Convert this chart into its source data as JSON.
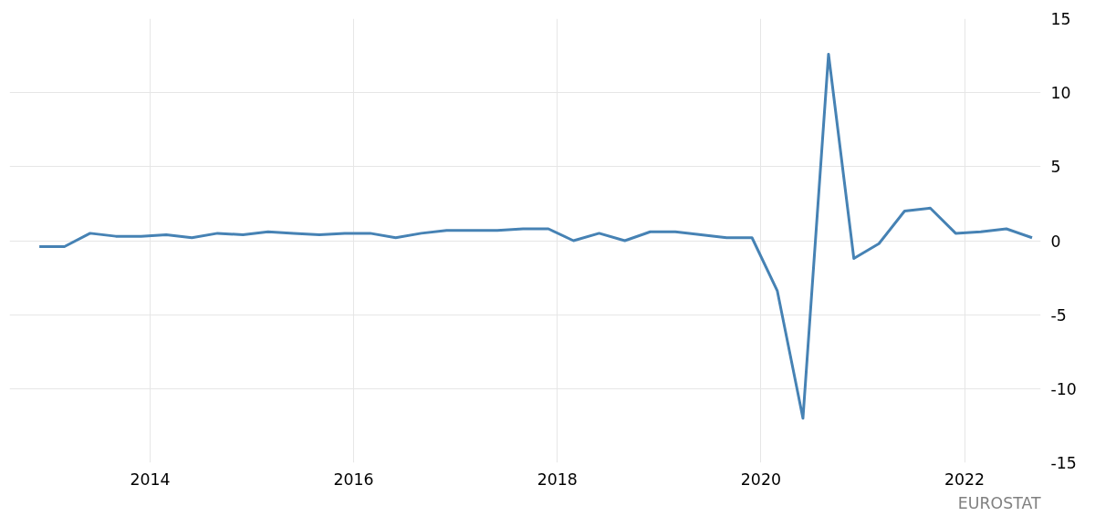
{
  "chart_data": {
    "type": "line",
    "x": [
      "2012-11-30",
      "2013-02-28",
      "2013-05-31",
      "2013-08-31",
      "2013-11-30",
      "2014-02-28",
      "2014-05-31",
      "2014-08-31",
      "2014-11-30",
      "2015-02-28",
      "2015-05-31",
      "2015-08-31",
      "2015-11-30",
      "2016-02-29",
      "2016-05-31",
      "2016-08-31",
      "2016-11-30",
      "2017-02-28",
      "2017-05-31",
      "2017-08-31",
      "2017-11-30",
      "2018-02-28",
      "2018-05-31",
      "2018-08-31",
      "2018-11-30",
      "2019-02-28",
      "2019-05-31",
      "2019-08-31",
      "2019-11-30",
      "2020-02-29",
      "2020-05-31",
      "2020-08-31",
      "2020-11-30",
      "2021-02-28",
      "2021-05-31",
      "2021-08-31",
      "2021-11-30",
      "2022-02-28",
      "2022-05-31",
      "2022-08-31"
    ],
    "series": [
      {
        "color": "#4682b4",
        "values": [
          -0.4,
          -0.4,
          0.5,
          0.3,
          0.3,
          0.4,
          0.2,
          0.5,
          0.4,
          0.6,
          0.5,
          0.4,
          0.5,
          0.5,
          0.2,
          0.5,
          0.7,
          0.7,
          0.7,
          0.8,
          0.8,
          0.0,
          0.5,
          0.0,
          0.6,
          0.6,
          0.4,
          0.2,
          0.2,
          -3.4,
          -12.0,
          12.6,
          -1.2,
          -0.2,
          2.0,
          2.2,
          0.5,
          0.6,
          0.8,
          0.2
        ]
      }
    ],
    "xlim": [
      "2012-08-15",
      "2022-10-01"
    ],
    "xticks": [
      {
        "value": "2014-01-01",
        "label": "2014"
      },
      {
        "value": "2016-01-01",
        "label": "2016"
      },
      {
        "value": "2018-01-01",
        "label": "2018"
      },
      {
        "value": "2020-01-01",
        "label": "2020"
      },
      {
        "value": "2022-01-01",
        "label": "2022"
      }
    ],
    "ylim": [
      -15,
      15
    ],
    "yticks": [
      -15,
      -10,
      -5,
      0,
      5,
      10,
      15
    ],
    "grid": true,
    "line_style": "solid",
    "annotations": [
      "EUROSTAT"
    ]
  }
}
